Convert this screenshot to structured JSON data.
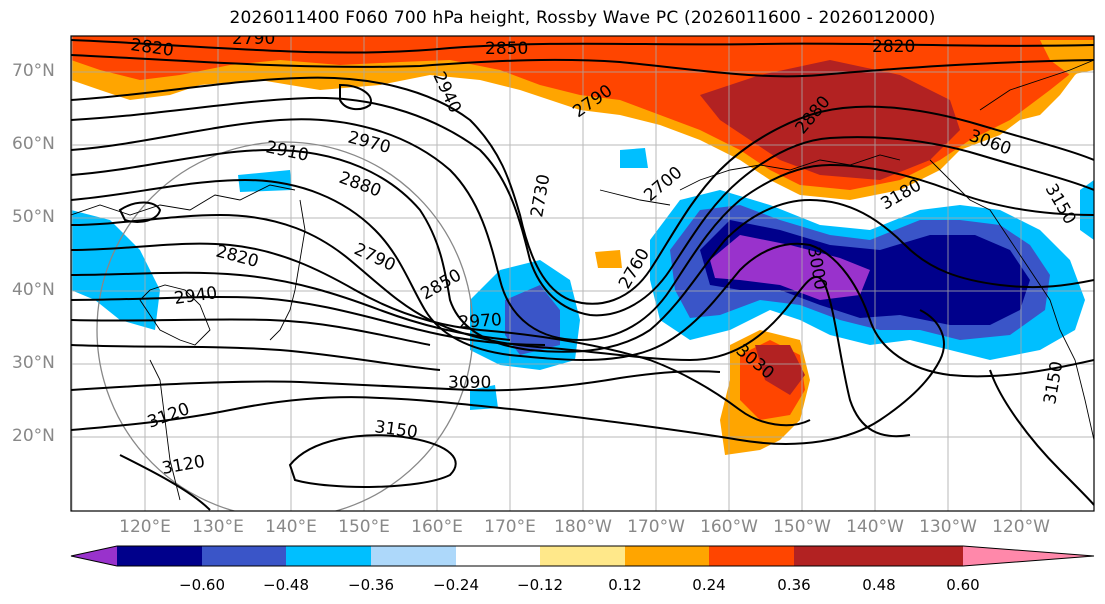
{
  "title": "2026011400 F060 700 hPa height, Rossby Wave PC (2026011600 - 2026012000)",
  "lat_labels": [
    "70°N",
    "60°N",
    "50°N",
    "40°N",
    "30°N",
    "20°N"
  ],
  "lon_labels": [
    "120°E",
    "130°E",
    "140°E",
    "150°E",
    "160°E",
    "170°E",
    "180°W",
    "170°W",
    "160°W",
    "150°W",
    "140°W",
    "130°W",
    "120°W"
  ],
  "contour_labels": [
    "2820",
    "2790",
    "2850",
    "2820",
    "2940",
    "2970",
    "2910",
    "2880",
    "2790",
    "2880",
    "3060",
    "2730",
    "2700",
    "3180",
    "3150",
    "2820",
    "2790",
    "2940",
    "2850",
    "2760",
    "3000",
    "2970",
    "3030",
    "3090",
    "3120",
    "3150",
    "3120",
    "3150"
  ],
  "colorbar": {
    "colors": [
      "#9932cc",
      "#00008b",
      "#3a55c8",
      "#00bfff",
      "#add8fa",
      "#ffffff",
      "#ffe88a",
      "#ffa500",
      "#ff4500",
      "#b22222",
      "#ff88aa"
    ],
    "tick_labels": [
      "−0.60",
      "−0.48",
      "−0.36",
      "−0.24",
      "−0.12",
      "0.12",
      "0.24",
      "0.36",
      "0.48",
      "0.60"
    ]
  }
}
